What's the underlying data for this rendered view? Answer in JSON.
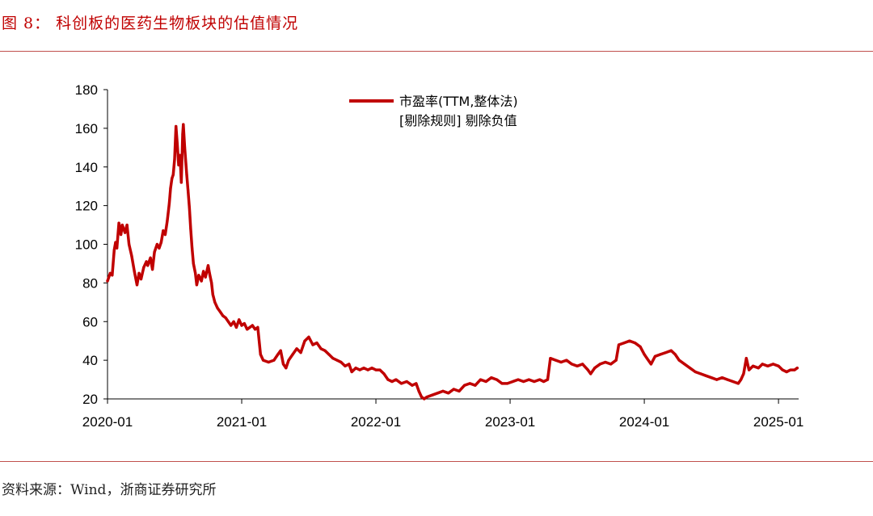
{
  "figure": {
    "title": "图 8：  科创板的医药生物板块的估值情况",
    "source": "资料来源：Wind，浙商证券研究所"
  },
  "colors": {
    "series": "#c00000",
    "rule": "#c0504d",
    "axis": "#000000"
  },
  "chart_data": {
    "type": "line",
    "title": "",
    "xlabel": "",
    "ylabel": "",
    "ylim": [
      20,
      180
    ],
    "yticks": [
      20,
      40,
      60,
      80,
      100,
      120,
      140,
      160,
      180
    ],
    "xlim": [
      2020.0,
      2025.15
    ],
    "xtick_labels": [
      "2020-01",
      "2021-01",
      "2022-01",
      "2023-01",
      "2024-01",
      "2025-01"
    ],
    "grid": false,
    "legend_position": "top-center",
    "series": [
      {
        "name": "市盈率(TTM,整体法)",
        "name_line2": "[剔除规则] 剔除负值",
        "points": [
          [
            2020.0,
            81
          ],
          [
            2020.02,
            85
          ],
          [
            2020.035,
            84
          ],
          [
            2020.05,
            97
          ],
          [
            2020.06,
            101
          ],
          [
            2020.07,
            98
          ],
          [
            2020.085,
            111
          ],
          [
            2020.1,
            105
          ],
          [
            2020.11,
            110
          ],
          [
            2020.13,
            106
          ],
          [
            2020.145,
            110
          ],
          [
            2020.16,
            100
          ],
          [
            2020.18,
            94
          ],
          [
            2020.2,
            86
          ],
          [
            2020.22,
            79
          ],
          [
            2020.235,
            85
          ],
          [
            2020.25,
            82
          ],
          [
            2020.27,
            88
          ],
          [
            2020.29,
            91
          ],
          [
            2020.3,
            89
          ],
          [
            2020.32,
            93
          ],
          [
            2020.335,
            87
          ],
          [
            2020.35,
            96
          ],
          [
            2020.37,
            100
          ],
          [
            2020.385,
            98
          ],
          [
            2020.4,
            101
          ],
          [
            2020.415,
            107
          ],
          [
            2020.43,
            105
          ],
          [
            2020.445,
            112
          ],
          [
            2020.46,
            121
          ],
          [
            2020.47,
            129
          ],
          [
            2020.48,
            134
          ],
          [
            2020.49,
            136
          ],
          [
            2020.5,
            144
          ],
          [
            2020.51,
            161
          ],
          [
            2020.52,
            152
          ],
          [
            2020.53,
            141
          ],
          [
            2020.54,
            146
          ],
          [
            2020.55,
            132
          ],
          [
            2020.56,
            157
          ],
          [
            2020.565,
            162
          ],
          [
            2020.575,
            150
          ],
          [
            2020.59,
            136
          ],
          [
            2020.6,
            128
          ],
          [
            2020.61,
            119
          ],
          [
            2020.62,
            108
          ],
          [
            2020.63,
            98
          ],
          [
            2020.64,
            90
          ],
          [
            2020.655,
            85
          ],
          [
            2020.665,
            79
          ],
          [
            2020.68,
            84
          ],
          [
            2020.7,
            81
          ],
          [
            2020.715,
            86
          ],
          [
            2020.73,
            83
          ],
          [
            2020.75,
            89
          ],
          [
            2020.76,
            85
          ],
          [
            2020.775,
            80
          ],
          [
            2020.785,
            74
          ],
          [
            2020.8,
            70
          ],
          [
            2020.82,
            67
          ],
          [
            2020.84,
            65
          ],
          [
            2020.86,
            63
          ],
          [
            2020.88,
            62
          ],
          [
            2020.9,
            60
          ],
          [
            2020.92,
            58
          ],
          [
            2020.94,
            60
          ],
          [
            2020.96,
            57
          ],
          [
            2020.98,
            61
          ],
          [
            2021.0,
            58
          ],
          [
            2021.02,
            59
          ],
          [
            2021.04,
            56
          ],
          [
            2021.06,
            57
          ],
          [
            2021.08,
            58
          ],
          [
            2021.1,
            56
          ],
          [
            2021.12,
            57
          ],
          [
            2021.14,
            43
          ],
          [
            2021.16,
            40
          ],
          [
            2021.2,
            39
          ],
          [
            2021.24,
            40
          ],
          [
            2021.27,
            43
          ],
          [
            2021.29,
            45
          ],
          [
            2021.31,
            38
          ],
          [
            2021.33,
            36
          ],
          [
            2021.35,
            40
          ],
          [
            2021.38,
            43
          ],
          [
            2021.41,
            46
          ],
          [
            2021.44,
            44
          ],
          [
            2021.47,
            50
          ],
          [
            2021.5,
            52
          ],
          [
            2021.53,
            48
          ],
          [
            2021.56,
            49
          ],
          [
            2021.59,
            46
          ],
          [
            2021.62,
            45
          ],
          [
            2021.65,
            43
          ],
          [
            2021.68,
            41
          ],
          [
            2021.71,
            40
          ],
          [
            2021.74,
            39
          ],
          [
            2021.77,
            37
          ],
          [
            2021.8,
            38
          ],
          [
            2021.82,
            34
          ],
          [
            2021.85,
            36
          ],
          [
            2021.88,
            35
          ],
          [
            2021.91,
            36
          ],
          [
            2021.94,
            35
          ],
          [
            2021.97,
            36
          ],
          [
            2022.0,
            35
          ],
          [
            2022.03,
            35
          ],
          [
            2022.06,
            33
          ],
          [
            2022.09,
            30
          ],
          [
            2022.12,
            29
          ],
          [
            2022.15,
            30
          ],
          [
            2022.19,
            28
          ],
          [
            2022.23,
            29
          ],
          [
            2022.27,
            27
          ],
          [
            2022.3,
            28
          ],
          [
            2022.32,
            24
          ],
          [
            2022.34,
            21
          ],
          [
            2022.36,
            20
          ],
          [
            2022.38,
            21
          ],
          [
            2022.42,
            22
          ],
          [
            2022.46,
            23
          ],
          [
            2022.5,
            24
          ],
          [
            2022.54,
            23
          ],
          [
            2022.58,
            25
          ],
          [
            2022.62,
            24
          ],
          [
            2022.66,
            27
          ],
          [
            2022.7,
            28
          ],
          [
            2022.74,
            27
          ],
          [
            2022.78,
            30
          ],
          [
            2022.82,
            29
          ],
          [
            2022.86,
            31
          ],
          [
            2022.9,
            30
          ],
          [
            2022.94,
            28
          ],
          [
            2022.98,
            28
          ],
          [
            2023.02,
            29
          ],
          [
            2023.06,
            30
          ],
          [
            2023.1,
            29
          ],
          [
            2023.14,
            30
          ],
          [
            2023.18,
            29
          ],
          [
            2023.22,
            30
          ],
          [
            2023.25,
            29
          ],
          [
            2023.28,
            30
          ],
          [
            2023.3,
            41
          ],
          [
            2023.34,
            40
          ],
          [
            2023.38,
            39
          ],
          [
            2023.42,
            40
          ],
          [
            2023.46,
            38
          ],
          [
            2023.5,
            37
          ],
          [
            2023.54,
            38
          ],
          [
            2023.58,
            35
          ],
          [
            2023.6,
            33
          ],
          [
            2023.63,
            36
          ],
          [
            2023.67,
            38
          ],
          [
            2023.71,
            39
          ],
          [
            2023.75,
            38
          ],
          [
            2023.79,
            40
          ],
          [
            2023.81,
            48
          ],
          [
            2023.85,
            49
          ],
          [
            2023.89,
            50
          ],
          [
            2023.93,
            49
          ],
          [
            2023.97,
            47
          ],
          [
            2024.0,
            43
          ],
          [
            2024.02,
            41
          ],
          [
            2024.05,
            38
          ],
          [
            2024.08,
            42
          ],
          [
            2024.12,
            43
          ],
          [
            2024.16,
            44
          ],
          [
            2024.2,
            45
          ],
          [
            2024.23,
            43
          ],
          [
            2024.26,
            40
          ],
          [
            2024.3,
            38
          ],
          [
            2024.34,
            36
          ],
          [
            2024.38,
            34
          ],
          [
            2024.42,
            33
          ],
          [
            2024.46,
            32
          ],
          [
            2024.5,
            31
          ],
          [
            2024.54,
            30
          ],
          [
            2024.58,
            31
          ],
          [
            2024.62,
            30
          ],
          [
            2024.66,
            29
          ],
          [
            2024.7,
            28
          ],
          [
            2024.72,
            30
          ],
          [
            2024.74,
            33
          ],
          [
            2024.76,
            41
          ],
          [
            2024.78,
            35
          ],
          [
            2024.81,
            37
          ],
          [
            2024.85,
            36
          ],
          [
            2024.88,
            38
          ],
          [
            2024.92,
            37
          ],
          [
            2024.96,
            38
          ],
          [
            2025.0,
            37
          ],
          [
            2025.03,
            35
          ],
          [
            2025.06,
            34
          ],
          [
            2025.09,
            35
          ],
          [
            2025.12,
            35
          ],
          [
            2025.14,
            36
          ]
        ]
      }
    ]
  }
}
